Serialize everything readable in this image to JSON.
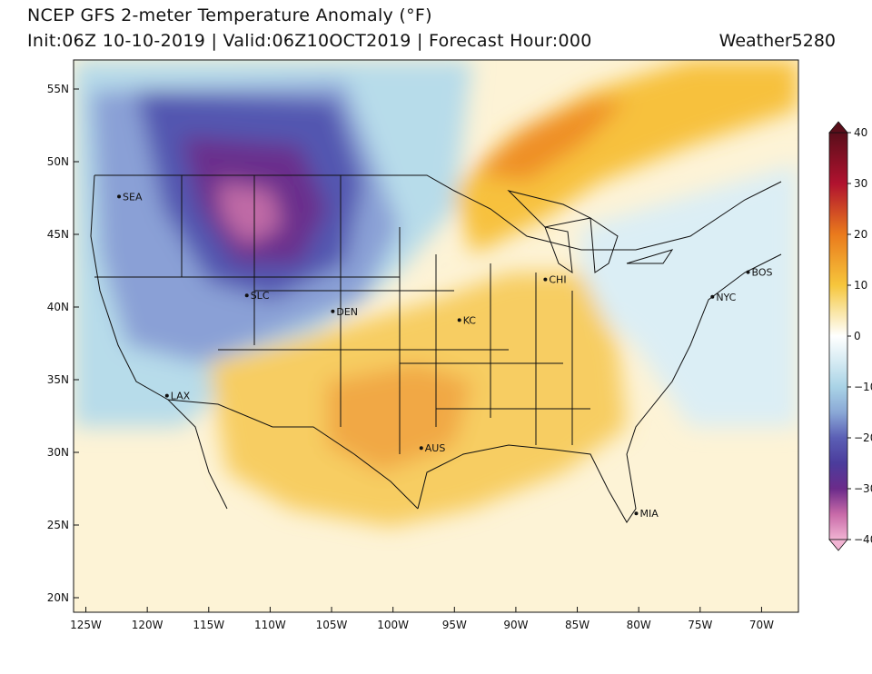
{
  "header": {
    "title": "NCEP GFS 2-meter Temperature Anomaly (°F)",
    "subtitle": "Init:06Z 10-10-2019 | Valid:06Z10OCT2019 | Forecast Hour:000",
    "credit": "Weather5280"
  },
  "map": {
    "lon_range": [
      -126,
      -67
    ],
    "lat_range": [
      19,
      57
    ],
    "lat_ticks": [
      {
        "value": 55,
        "label": "55N"
      },
      {
        "value": 50,
        "label": "50N"
      },
      {
        "value": 45,
        "label": "45N"
      },
      {
        "value": 40,
        "label": "40N"
      },
      {
        "value": 35,
        "label": "35N"
      },
      {
        "value": 30,
        "label": "30N"
      },
      {
        "value": 25,
        "label": "25N"
      },
      {
        "value": 20,
        "label": "20N"
      }
    ],
    "lon_ticks": [
      {
        "value": -125,
        "label": "125W"
      },
      {
        "value": -120,
        "label": "120W"
      },
      {
        "value": -115,
        "label": "115W"
      },
      {
        "value": -110,
        "label": "110W"
      },
      {
        "value": -105,
        "label": "105W"
      },
      {
        "value": -100,
        "label": "100W"
      },
      {
        "value": -95,
        "label": "95W"
      },
      {
        "value": -90,
        "label": "90W"
      },
      {
        "value": -85,
        "label": "85W"
      },
      {
        "value": -80,
        "label": "80W"
      },
      {
        "value": -75,
        "label": "75W"
      },
      {
        "value": -70,
        "label": "70W"
      }
    ],
    "cities": [
      {
        "name": "SEA",
        "lon": -122.3,
        "lat": 47.6
      },
      {
        "name": "SLC",
        "lon": -111.9,
        "lat": 40.8
      },
      {
        "name": "DEN",
        "lon": -104.9,
        "lat": 39.7
      },
      {
        "name": "KC",
        "lon": -94.6,
        "lat": 39.1
      },
      {
        "name": "CHI",
        "lon": -87.6,
        "lat": 41.9
      },
      {
        "name": "NYC",
        "lon": -74.0,
        "lat": 40.7
      },
      {
        "name": "BOS",
        "lon": -71.1,
        "lat": 42.4
      },
      {
        "name": "LAX",
        "lon": -118.4,
        "lat": 33.9
      },
      {
        "name": "AUS",
        "lon": -97.7,
        "lat": 30.3
      },
      {
        "name": "MIA",
        "lon": -80.2,
        "lat": 25.8
      }
    ],
    "anomaly_regions": [
      {
        "id": "cold-north-rockies",
        "anomaly": -30
      },
      {
        "id": "cold-west",
        "anomaly": -15
      },
      {
        "id": "warm-south",
        "anomaly": 10
      },
      {
        "id": "warm-ontario-band",
        "anomaly": 15
      },
      {
        "id": "cool-northeast",
        "anomaly": -3
      }
    ]
  },
  "colorbar": {
    "ticks": [
      {
        "value": 40,
        "label": "40"
      },
      {
        "value": 30,
        "label": "30"
      },
      {
        "value": 20,
        "label": "20"
      },
      {
        "value": 10,
        "label": "10"
      },
      {
        "value": 0,
        "label": "0"
      },
      {
        "value": -10,
        "label": "−10"
      },
      {
        "value": -20,
        "label": "−20"
      },
      {
        "value": -30,
        "label": "−30"
      },
      {
        "value": -40,
        "label": "−40"
      }
    ],
    "colors": {
      "40": "#5a0e1a",
      "30": "#b0122f",
      "20": "#ea7a1c",
      "10": "#f6c63c",
      "5": "#f9e4a0",
      "0": "#ffffff",
      "-5": "#d6ebf3",
      "-10": "#a9d3e6",
      "-15": "#8aa8d6",
      "-20": "#5b5fb5",
      "-25": "#4b3c9c",
      "-30": "#6b2b8a",
      "-35": "#c86aa8",
      "-40": "#f1b4d3"
    }
  }
}
